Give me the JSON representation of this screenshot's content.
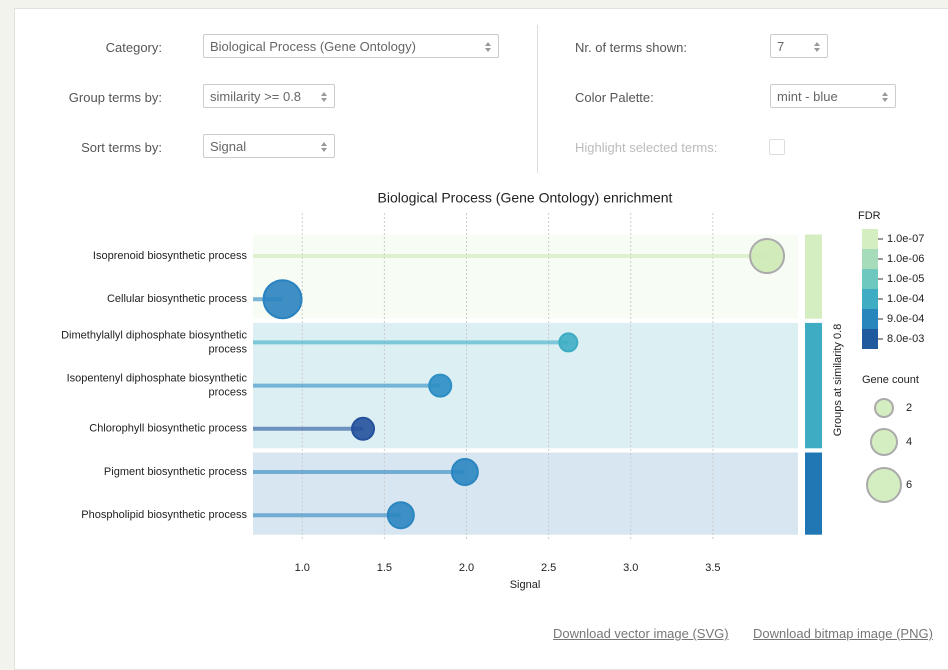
{
  "controls": {
    "left": [
      {
        "label": "Category:",
        "value": "Biological Process (Gene Ontology)"
      },
      {
        "label": "Group terms by:",
        "value": "similarity >= 0.8"
      },
      {
        "label": "Sort terms by:",
        "value": "Signal"
      }
    ],
    "right": [
      {
        "label": "Nr. of terms shown:",
        "value": "7"
      },
      {
        "label": "Color Palette:",
        "value": "mint - blue"
      },
      {
        "label": "Highlight selected terms:"
      }
    ]
  },
  "chart_data": {
    "type": "lollipop",
    "title": "Biological Process (Gene Ontology) enrichment",
    "xlabel": "Signal",
    "categories": [
      "Isoprenoid biosynthetic process",
      "Cellular biosynthetic process",
      "Dimethylallyl diphosphate biosynthetic process",
      "Isopentenyl diphosphate biosynthetic process",
      "Chlorophyll biosynthetic process",
      "Pigment biosynthetic process",
      "Phospholipid biosynthetic process"
    ],
    "values": [
      3.83,
      0.88,
      2.62,
      1.84,
      1.37,
      1.99,
      1.6
    ],
    "sizes": [
      6,
      7,
      2,
      3,
      3,
      4,
      4
    ],
    "colors": [
      "#cde9b4",
      "#2a83c0",
      "#3eadc4",
      "#2b8ec4",
      "#25519c",
      "#2b86c0",
      "#2b86c0"
    ],
    "group_colors": [
      "#d5eec1",
      "#d5eec1",
      "#3eadc4",
      "#3eadc4",
      "#3eadc4",
      "#2176b4",
      "#2176b4"
    ],
    "group_label": "Groups at similarity 0.8",
    "xlim": [
      0.7,
      4.0
    ],
    "xticks": [
      {
        "value": 1,
        "label": "1.0"
      },
      {
        "value": 1.5,
        "label": "1.5"
      },
      {
        "value": 2,
        "label": "2.0"
      },
      {
        "value": 2.5,
        "label": "2.5"
      },
      {
        "value": 3,
        "label": "3.0"
      },
      {
        "value": 3.5,
        "label": "3.5"
      }
    ],
    "grid": true,
    "color_legend": {
      "title": "FDR",
      "items": [
        {
          "label": "1.0e-07",
          "color": "#d5eec1"
        },
        {
          "label": "1.0e-06",
          "color": "#a6dcb9"
        },
        {
          "label": "1.0e-05",
          "color": "#6fc8bf"
        },
        {
          "label": "1.0e-04",
          "color": "#3eadc4"
        },
        {
          "label": "9.0e-04",
          "color": "#2886bc"
        },
        {
          "label": "8.0e-03",
          "color": "#1f5a9e"
        }
      ]
    },
    "size_legend": {
      "title": "Gene count",
      "values": [
        2,
        4,
        6
      ]
    }
  },
  "downloads": [
    "Download vector image (SVG)",
    "Download bitmap image (PNG)"
  ]
}
